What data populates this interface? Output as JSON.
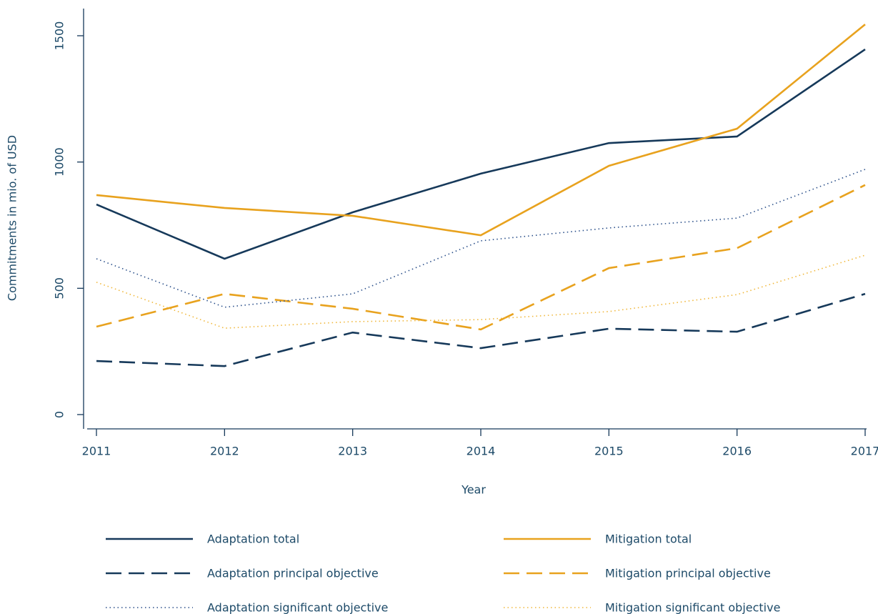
{
  "chart_data": {
    "type": "line",
    "x_label": "Year",
    "y_label": "Commitments in mio. of USD",
    "x": [
      2011,
      2012,
      2013,
      2014,
      2015,
      2016,
      2017
    ],
    "xlim": [
      2011,
      2017
    ],
    "xticks": [
      2011,
      2012,
      2013,
      2014,
      2015,
      2016,
      2017
    ],
    "ylim": [
      0,
      1500
    ],
    "yticks": [
      0,
      500,
      1000,
      1500
    ],
    "series": [
      {
        "name": "Adaptation total",
        "color": "#16395a",
        "style": "solid",
        "values": [
          832,
          617,
          801,
          954,
          1075,
          1101,
          1446
        ]
      },
      {
        "name": "Mitigation total",
        "color": "#e8a21e",
        "style": "solid",
        "values": [
          869,
          818,
          787,
          710,
          985,
          1132,
          1545
        ]
      },
      {
        "name": "Adaptation principal objective",
        "color": "#16395a",
        "style": "dashed",
        "values": [
          212,
          192,
          325,
          263,
          340,
          328,
          478
        ]
      },
      {
        "name": "Mitigation principal objective",
        "color": "#e8a21e",
        "style": "dashed",
        "values": [
          348,
          478,
          419,
          337,
          580,
          659,
          909
        ]
      },
      {
        "name": "Adaptation significant objective",
        "color": "#2a4f8a",
        "style": "dotted",
        "values": [
          617,
          425,
          478,
          688,
          739,
          778,
          971
        ]
      },
      {
        "name": "Mitigation significant objective",
        "color": "#f0b73a",
        "style": "dotted",
        "values": [
          524,
          342,
          368,
          376,
          408,
          475,
          631
        ]
      }
    ]
  }
}
